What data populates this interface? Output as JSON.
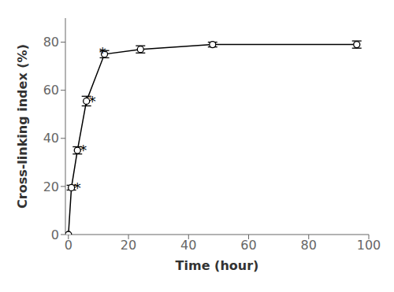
{
  "chart_data": {
    "type": "line",
    "x_label": "Time (hour)",
    "y_label": "Cross-linking index (%)",
    "x": [
      0,
      1,
      3,
      6,
      12,
      24,
      48,
      96
    ],
    "values": [
      0,
      19.5,
      35.0,
      55.5,
      75.0,
      77.0,
      79.0,
      79.0
    ],
    "errors": [
      0,
      1.0,
      1.5,
      2.0,
      1.5,
      1.5,
      1.0,
      1.5
    ],
    "color": "#000000",
    "marker": "circle",
    "xlim": [
      -1,
      100
    ],
    "ylim": [
      0,
      90
    ],
    "xticks": [
      0,
      20,
      40,
      60,
      80,
      100
    ],
    "yticks": [
      0,
      20,
      40,
      60,
      80
    ],
    "annotations": [
      {
        "text": "*",
        "x": 1.8,
        "y": 19.5
      },
      {
        "text": "*",
        "x": 3.8,
        "y": 35.0
      },
      {
        "text": "*",
        "x": 6.8,
        "y": 55.5
      },
      {
        "text": "*",
        "x": 10.2,
        "y": 75.8
      }
    ]
  }
}
